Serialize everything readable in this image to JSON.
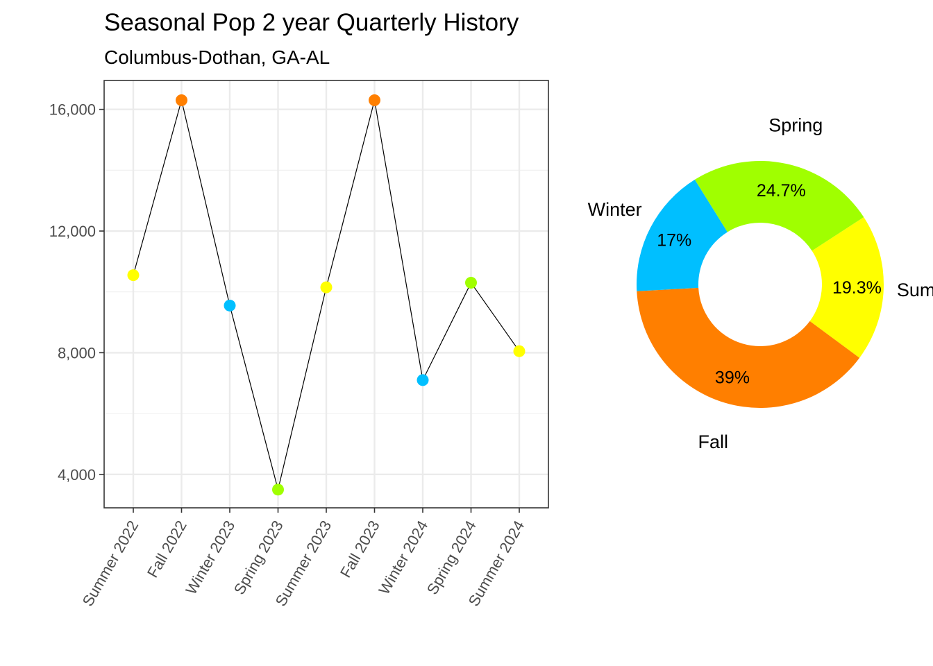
{
  "chart_data": [
    {
      "type": "line",
      "title": "Seasonal Pop 2 year Quarterly History",
      "subtitle": "Columbus-Dothan,  GA-AL",
      "xlabel": "",
      "ylabel": "",
      "categories": [
        "Summer 2022",
        "Fall 2022",
        "Winter 2023",
        "Spring 2023",
        "Summer 2023",
        "Fall 2023",
        "Winter 2024",
        "Spring 2024",
        "Summer 2024"
      ],
      "seasons": [
        "Summer",
        "Fall",
        "Winter",
        "Spring",
        "Summer",
        "Fall",
        "Winter",
        "Spring",
        "Summer"
      ],
      "values": [
        10550,
        16300,
        9550,
        3500,
        10150,
        16300,
        7100,
        10300,
        8050
      ],
      "ylim": [
        2900,
        16950
      ],
      "yticks": [
        4000,
        8000,
        12000,
        16000
      ],
      "ytick_labels": [
        "4,000",
        "8,000",
        "12,000",
        "16,000"
      ],
      "grid": true,
      "season_colors": {
        "Summer": "#ffff00",
        "Fall": "#ff7f00",
        "Winter": "#00bfff",
        "Spring": "#a0ff00"
      },
      "line_color": "#000000"
    },
    {
      "type": "pie",
      "donut": true,
      "slices": [
        {
          "label": "Summer",
          "display_label": "Summ",
          "value": 19.3,
          "value_label": "19.3%",
          "color": "#ffff00"
        },
        {
          "label": "Fall",
          "display_label": "Fall",
          "value": 39.0,
          "value_label": "39%",
          "color": "#ff7f00"
        },
        {
          "label": "Winter",
          "display_label": "Winter",
          "value": 17.0,
          "value_label": "17%",
          "color": "#00bfff"
        },
        {
          "label": "Spring",
          "display_label": "Spring",
          "value": 24.7,
          "value_label": "24.7%",
          "color": "#a0ff00"
        }
      ]
    }
  ]
}
